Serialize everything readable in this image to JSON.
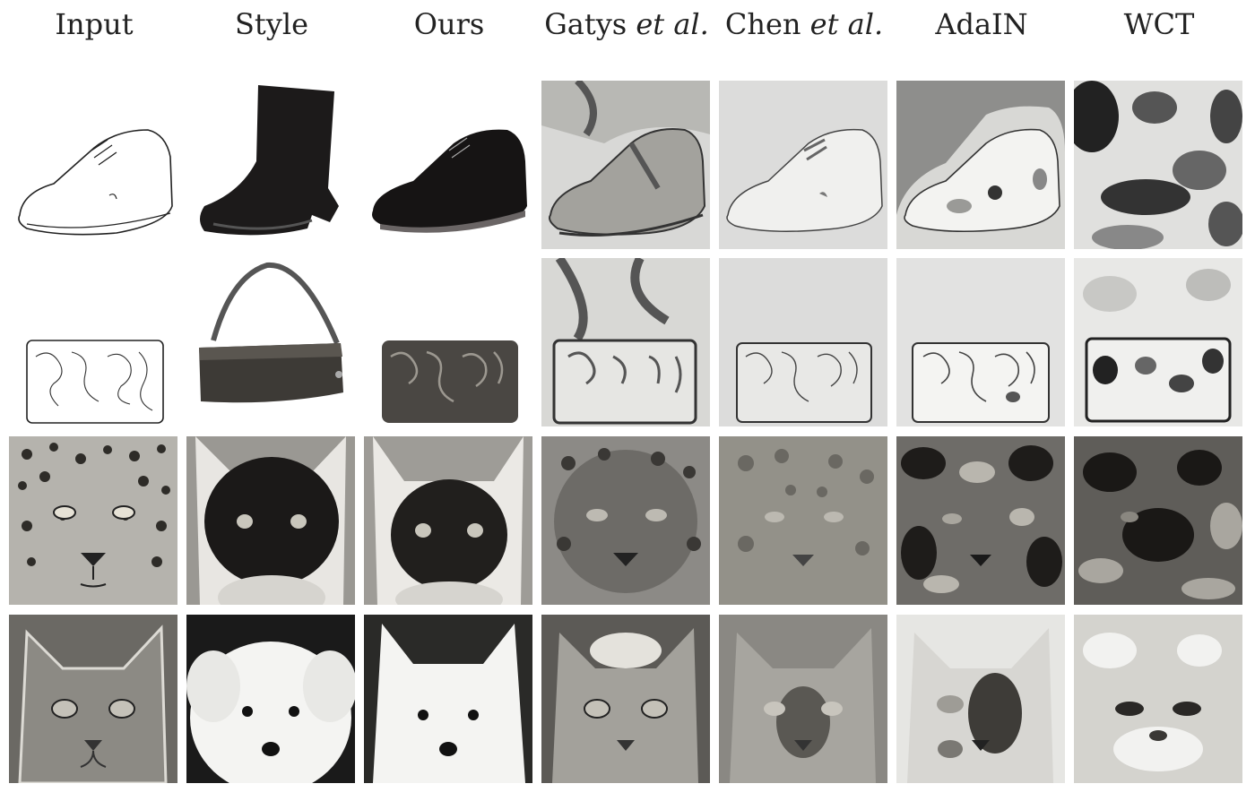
{
  "columns": [
    {
      "name": "Input",
      "suffix": ""
    },
    {
      "name": "Style",
      "suffix": ""
    },
    {
      "name": "Ours",
      "suffix": ""
    },
    {
      "name": "Gatys ",
      "suffix": "et al."
    },
    {
      "name": "Chen ",
      "suffix": "et al."
    },
    {
      "name": "AdaIN",
      "suffix": ""
    },
    {
      "name": "WCT",
      "suffix": ""
    }
  ],
  "rows": [
    {
      "subject": "shoe",
      "cells": [
        "shoe-sketch",
        "black-boot",
        "black-shoe",
        "shoe-texture-light",
        "shoe-pale",
        "shoe-gray-blobs",
        "shoe-dark-blobs"
      ]
    },
    {
      "subject": "handbag",
      "cells": [
        "bag-sketch",
        "leather-handbag",
        "bag-textured",
        "bag-texture-light",
        "bag-pale",
        "bag-pale-outline",
        "bag-dark-blobs"
      ]
    },
    {
      "subject": "leopard-cat",
      "cells": [
        "leopard-photo",
        "siamese-cat",
        "siamese-result",
        "leopard-gatys",
        "leopard-chen",
        "leopard-adain",
        "leopard-wct"
      ]
    },
    {
      "subject": "cat-dog",
      "cells": [
        "tabby-cat",
        "white-puppy",
        "white-dog-result",
        "cat-gatys",
        "cat-chen",
        "cat-adain",
        "cat-wct"
      ]
    }
  ]
}
